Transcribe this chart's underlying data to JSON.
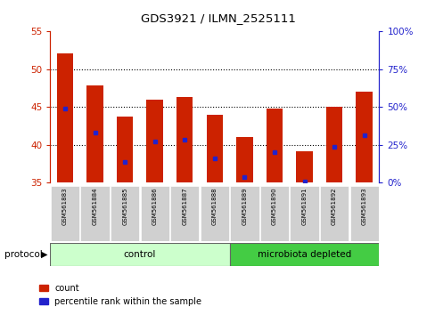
{
  "title": "GDS3921 / ILMN_2525111",
  "samples": [
    "GSM561883",
    "GSM561884",
    "GSM561885",
    "GSM561886",
    "GSM561887",
    "GSM561888",
    "GSM561889",
    "GSM561890",
    "GSM561891",
    "GSM561892",
    "GSM561893"
  ],
  "counts": [
    52.1,
    47.9,
    43.7,
    46.0,
    46.3,
    44.0,
    41.0,
    44.8,
    39.2,
    45.0,
    47.0
  ],
  "percentile_ranks": [
    44.8,
    41.6,
    37.7,
    40.5,
    40.7,
    38.2,
    35.8,
    39.0,
    35.2,
    39.7,
    41.3
  ],
  "ylim_left": [
    35,
    55
  ],
  "ylim_right": [
    0,
    100
  ],
  "yticks_left": [
    35,
    40,
    45,
    50,
    55
  ],
  "yticks_right": [
    0,
    25,
    50,
    75,
    100
  ],
  "bar_color": "#CC2200",
  "dot_color": "#2222CC",
  "control_color": "#CCFFCC",
  "microbiota_color": "#44CC44",
  "protocol_label": "protocol",
  "control_label": "control",
  "microbiota_label": "microbiota depleted",
  "n_control": 6,
  "legend_count_label": "count",
  "legend_pct_label": "percentile rank within the sample",
  "bar_width": 0.55,
  "grid_color": "black",
  "bg_color": "#FFFFFF"
}
